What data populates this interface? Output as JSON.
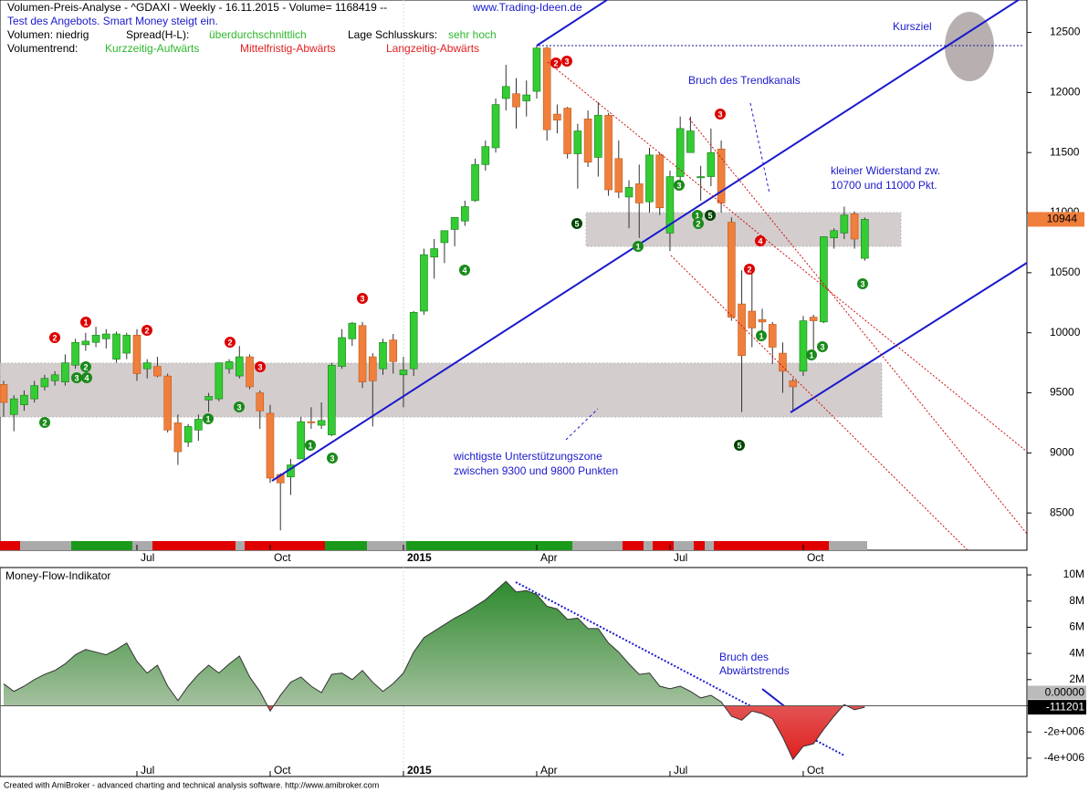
{
  "chart_data": [
    {
      "type": "candlestick",
      "title": "Volumen-Preis-Analyse - ^GDAXI - Weekly - 16.11.2015 - Volume= 1168419 --",
      "link": "www.Trading-Ideen.de",
      "subtitle": "Test des Angebots. Smart Money steigt ein.",
      "status": [
        {
          "text": "Volumen: niedrig",
          "color": "#000000"
        },
        {
          "text": "Spread(H-L):",
          "color": "#000000"
        },
        {
          "text": "überdurchschnittlich",
          "color": "#2db82d"
        },
        {
          "text": "Lage Schlusskurs:",
          "color": "#000000"
        },
        {
          "text": "sehr hoch",
          "color": "#2db82d"
        },
        {
          "text": "Volumentrend:",
          "color": "#000000"
        },
        {
          "text": "Kurzzeitig-Aufwärts",
          "color": "#2db82d"
        },
        {
          "text": "Mittelfristig-Abwärts",
          "color": "#e02020"
        },
        {
          "text": "Langzeitig-Abwärts",
          "color": "#e02020"
        }
      ],
      "annotations": [
        {
          "text": "Kursziel",
          "color": "#1a1acc"
        },
        {
          "text": "Bruch des Trendkanals",
          "color": "#1a1acc"
        },
        {
          "text": "kleiner Widerstand zw.",
          "color": "#1a1acc"
        },
        {
          "text": "10700 und 11000 Pkt.",
          "color": "#1a1acc"
        },
        {
          "text": "wichtigste Unterstützungszone",
          "color": "#1a1acc"
        },
        {
          "text": "zwischen 9300 und 9800 Punkten",
          "color": "#1a1acc"
        }
      ],
      "signals": [
        {
          "label": "2",
          "color": "#1a8a1a"
        },
        {
          "label": "3",
          "color": "#1a8a1a"
        },
        {
          "label": "4",
          "color": "#1a8a1a"
        },
        {
          "label": "2",
          "color": "#1a8a1a"
        },
        {
          "label": "1",
          "color": "#1a8a1a"
        },
        {
          "label": "3",
          "color": "#1a8a1a"
        },
        {
          "label": "1",
          "color": "#1a8a1a"
        },
        {
          "label": "3",
          "color": "#1a8a1a"
        },
        {
          "label": "4",
          "color": "#1a8a1a"
        },
        {
          "label": "5",
          "color": "#004400"
        },
        {
          "label": "1",
          "color": "#1a8a1a"
        },
        {
          "label": "3",
          "color": "#1a8a1a"
        },
        {
          "label": "1",
          "color": "#1a8a1a"
        },
        {
          "label": "2",
          "color": "#1a8a1a"
        },
        {
          "label": "5",
          "color": "#004400"
        },
        {
          "label": "5",
          "color": "#004400"
        },
        {
          "label": "1",
          "color": "#1a8a1a"
        },
        {
          "label": "1",
          "color": "#1a8a1a"
        },
        {
          "label": "3",
          "color": "#1a8a1a"
        },
        {
          "label": "3",
          "color": "#1a8a1a"
        },
        {
          "label": "2",
          "color": "#dd0000"
        },
        {
          "label": "1",
          "color": "#dd0000"
        },
        {
          "label": "2",
          "color": "#dd0000"
        },
        {
          "label": "2",
          "color": "#dd0000"
        },
        {
          "label": "3",
          "color": "#dd0000"
        },
        {
          "label": "3",
          "color": "#dd0000"
        },
        {
          "label": "2",
          "color": "#dd0000"
        },
        {
          "label": "3",
          "color": "#dd0000"
        },
        {
          "label": "3",
          "color": "#dd0000"
        },
        {
          "label": "4",
          "color": "#dd0000"
        },
        {
          "label": "2",
          "color": "#dd0000"
        }
      ],
      "up_color": "#33cc33",
      "down_color": "#f07f3c",
      "categories": [
        null,
        null,
        null,
        null,
        null,
        null,
        null,
        null,
        null,
        null,
        null,
        null,
        null,
        "Jul",
        null,
        null,
        null,
        null,
        null,
        null,
        null,
        null,
        null,
        null,
        null,
        null,
        "Oct",
        null,
        null,
        null,
        null,
        null,
        null,
        null,
        null,
        null,
        null,
        null,
        null,
        "2015",
        null,
        null,
        null,
        null,
        null,
        null,
        null,
        null,
        null,
        null,
        null,
        null,
        "Apr",
        null,
        null,
        null,
        null,
        null,
        null,
        null,
        null,
        null,
        null,
        null,
        null,
        "Jul",
        null,
        null,
        null,
        null,
        null,
        null,
        null,
        null,
        null,
        null,
        null,
        null,
        "Oct",
        null,
        null,
        null,
        null,
        null,
        null
      ],
      "open": [
        9570,
        9320,
        9400,
        9450,
        9550,
        9600,
        9590,
        9730,
        9900,
        9920,
        9950,
        9780,
        9830,
        9980,
        9700,
        9720,
        9640,
        9250,
        9090,
        9190,
        9440,
        9450,
        9700,
        9640,
        9800,
        9500,
        9330,
        8820,
        8800,
        8950,
        9260,
        9230,
        9150,
        9720,
        9950,
        10060,
        9800,
        9700,
        9940,
        9650,
        9700,
        10180,
        10630,
        10750,
        10860,
        10930,
        11100,
        11400,
        11540,
        11950,
        11990,
        11930,
        12010,
        12370,
        11820,
        11870,
        11490,
        11780,
        11460,
        11810,
        11450,
        11130,
        11240,
        11090,
        11480,
        10830,
        11300,
        11500,
        11290,
        11300,
        11530,
        10920,
        10240,
        10180,
        10110,
        10070,
        9830,
        9600,
        9680,
        10130,
        10090,
        10790,
        10830,
        10990,
        10620
      ],
      "high": [
        9600,
        9480,
        9520,
        9600,
        9650,
        9680,
        9820,
        9950,
        10000,
        10050,
        10030,
        10010,
        10000,
        10030,
        9780,
        9800,
        9660,
        9320,
        9240,
        9320,
        9500,
        9750,
        9780,
        9890,
        9820,
        9520,
        9400,
        8830,
        8950,
        9300,
        9380,
        9420,
        9750,
        10030,
        10090,
        10090,
        9830,
        9950,
        9990,
        9800,
        10180,
        10700,
        10780,
        10830,
        10950,
        11100,
        11450,
        11600,
        11950,
        12230,
        12120,
        12100,
        12390,
        12380,
        11900,
        11880,
        11740,
        11850,
        11920,
        11830,
        11600,
        11270,
        11400,
        11540,
        11500,
        11350,
        11800,
        11800,
        11390,
        11700,
        11600,
        10960,
        10520,
        10520,
        10200,
        10090,
        9920,
        9620,
        10140,
        10150,
        10800,
        10870,
        11050,
        11010,
        10960
      ],
      "low": [
        9300,
        9180,
        9350,
        9420,
        9520,
        9560,
        9560,
        9700,
        9850,
        9880,
        9870,
        9750,
        9780,
        9600,
        9620,
        9630,
        9170,
        8900,
        9050,
        9100,
        9340,
        9430,
        9660,
        9620,
        9530,
        9200,
        8750,
        8355,
        8650,
        8950,
        9200,
        9200,
        9140,
        9700,
        9890,
        9540,
        9220,
        9650,
        9660,
        9380,
        9640,
        10150,
        10450,
        10580,
        10720,
        10890,
        11090,
        11350,
        11500,
        11850,
        11700,
        11800,
        11950,
        11600,
        11660,
        11450,
        11200,
        11380,
        11300,
        11140,
        11120,
        10870,
        10790,
        11000,
        10980,
        10680,
        11260,
        11500,
        11100,
        11220,
        11000,
        10100,
        9340,
        9880,
        9950,
        9740,
        9500,
        9350,
        9640,
        9800,
        10080,
        10700,
        10780,
        10700,
        10600
      ],
      "close": [
        9420,
        9450,
        9480,
        9560,
        9620,
        9650,
        9750,
        9920,
        9930,
        9980,
        9990,
        9990,
        9980,
        9660,
        9750,
        9640,
        9190,
        9010,
        9220,
        9280,
        9470,
        9750,
        9760,
        9800,
        9550,
        9350,
        8790,
        8750,
        8900,
        9260,
        9250,
        9270,
        9730,
        9960,
        10080,
        9590,
        9600,
        9920,
        9760,
        9690,
        10170,
        10650,
        10700,
        10850,
        10960,
        11050,
        11400,
        11550,
        11900,
        12050,
        11880,
        11980,
        12370,
        11690,
        11770,
        11490,
        11680,
        11420,
        11810,
        11190,
        11170,
        11210,
        11080,
        11480,
        11040,
        11300,
        11700,
        11680,
        11300,
        11500,
        11080,
        10130,
        9810,
        10040,
        10090,
        9880,
        9680,
        9550,
        10100,
        10100,
        10800,
        10850,
        10980,
        10780,
        10944
      ],
      "ylim": [
        8190,
        12770
      ],
      "yticks": [
        8500,
        9000,
        9500,
        10000,
        10500,
        11000,
        11500,
        12000,
        12500
      ]
    },
    {
      "type": "area",
      "title": "Money-Flow-Indikator",
      "annotations": [
        {
          "text": "Bruch des",
          "color": "#1a1acc"
        },
        {
          "text": "Abwärtstrends",
          "color": "#1a1acc"
        }
      ],
      "color": "#2d8a2d",
      "negative_color": "#e02020",
      "categories": [
        null,
        null,
        null,
        null,
        null,
        null,
        null,
        null,
        null,
        null,
        null,
        null,
        null,
        "Jul",
        null,
        null,
        null,
        null,
        null,
        null,
        null,
        null,
        null,
        null,
        null,
        null,
        "Oct",
        null,
        null,
        null,
        null,
        null,
        null,
        null,
        null,
        null,
        null,
        null,
        null,
        "2015",
        null,
        null,
        null,
        null,
        null,
        null,
        null,
        null,
        null,
        null,
        null,
        null,
        "Apr",
        null,
        null,
        null,
        null,
        null,
        null,
        null,
        null,
        null,
        null,
        null,
        null,
        "Jul",
        null,
        null,
        null,
        null,
        null,
        null,
        null,
        null,
        null,
        null,
        null,
        null,
        "Oct",
        null,
        null,
        null,
        null,
        null,
        null
      ],
      "values": [
        1680000,
        1100000,
        1500000,
        2000000,
        2400000,
        2700000,
        3200000,
        3900000,
        4300000,
        4100000,
        3900000,
        4300000,
        4800000,
        3400000,
        2500000,
        3100000,
        1500000,
        400000,
        1500000,
        2400000,
        3100000,
        2500000,
        3200000,
        3800000,
        2200000,
        1100000,
        -400000,
        800000,
        1800000,
        2200000,
        1500000,
        1000000,
        2400000,
        2500000,
        2000000,
        2700000,
        1800000,
        1100000,
        1700000,
        2500000,
        4100000,
        5200000,
        5700000,
        6200000,
        6700000,
        7100000,
        7600000,
        8100000,
        8800000,
        9500000,
        8700000,
        8800000,
        8500000,
        7600000,
        7400000,
        6600000,
        6700000,
        5900000,
        5900000,
        4800000,
        4100000,
        3200000,
        2400000,
        2500000,
        1500000,
        1300000,
        1500000,
        1100000,
        600000,
        800000,
        300000,
        -800000,
        -1100000,
        -400000,
        -600000,
        -1000000,
        -2400000,
        -4100000,
        -3100000,
        -2900000,
        -1800000,
        -800000,
        100000,
        -300000,
        -111201
      ],
      "ylim": [
        -5400000,
        10560000
      ],
      "yticks": [
        {
          "value": 10000000,
          "label": "10M"
        },
        {
          "value": 8000000,
          "label": "8M"
        },
        {
          "value": 6000000,
          "label": "6M"
        },
        {
          "value": 4000000,
          "label": "4M"
        },
        {
          "value": 2000000,
          "label": "2M"
        },
        {
          "value": 0,
          "label": "0.00000"
        },
        {
          "value": -2000000,
          "label": "-2e+006"
        },
        {
          "value": -4000000,
          "label": "-4e+006"
        }
      ]
    }
  ],
  "footer": "Created with AmiBroker - advanced charting and technical analysis software. http://www.amibroker.com"
}
